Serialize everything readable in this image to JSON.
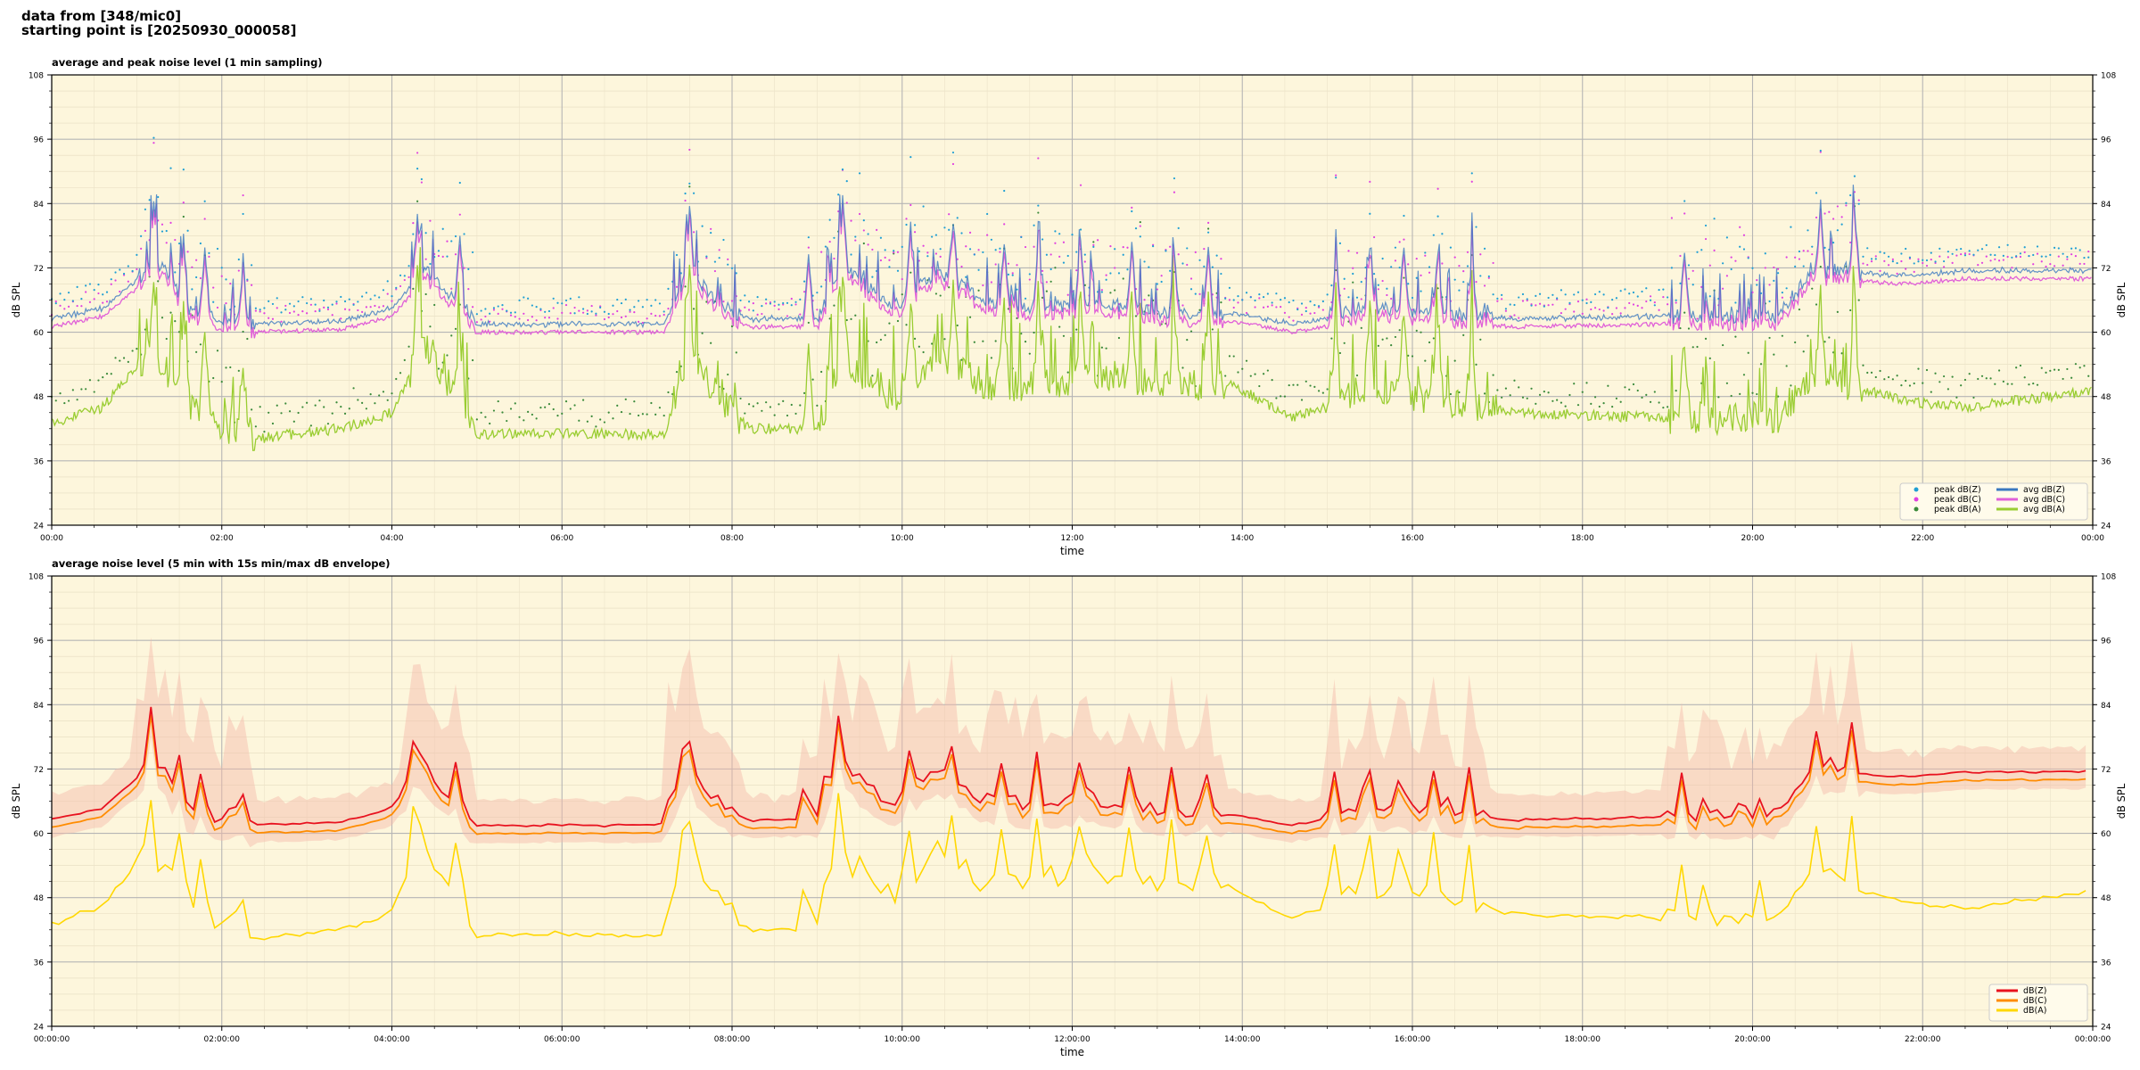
{
  "header": {
    "line1": "data from [348/mic0]",
    "line2": "starting point is [20250930_000058]"
  },
  "colors": {
    "background": "#fdf6dc",
    "peak_z": "#1f9fd4",
    "peak_c": "#e040e0",
    "peak_a": "#3a8a3a",
    "avg_z": "#3a78c0",
    "avg_c": "#e060d8",
    "avg_a": "#9acd32",
    "env_z": "#e8121f",
    "env_c": "#ff8c00",
    "env_a": "#ffd700",
    "envelope_fill": "#f4b8a8"
  },
  "chart_data": [
    {
      "type": "line",
      "title": "average and peak noise level (1 min sampling)",
      "xlabel": "time",
      "ylabel": "dB SPL",
      "ylim": [
        24,
        108
      ],
      "yticks": [
        24,
        36,
        48,
        60,
        72,
        84,
        96,
        108
      ],
      "xlim": [
        0,
        24
      ],
      "xtick_hours": [
        0,
        2,
        4,
        6,
        8,
        10,
        12,
        14,
        16,
        18,
        20,
        22,
        24
      ],
      "xtick_labels": [
        "00:00",
        "02:00",
        "04:00",
        "06:00",
        "08:00",
        "10:00",
        "12:00",
        "14:00",
        "16:00",
        "18:00",
        "20:00",
        "22:00",
        "00:00"
      ],
      "grid": true,
      "legend_position": "bottom-right",
      "legend": [
        {
          "label": "peak dB(Z)",
          "kind": "dot",
          "color": "peak_z"
        },
        {
          "label": "peak dB(C)",
          "kind": "dot",
          "color": "peak_c"
        },
        {
          "label": "peak dB(A)",
          "kind": "dot",
          "color": "peak_a"
        },
        {
          "label": "avg dB(Z)",
          "kind": "line",
          "color": "avg_z"
        },
        {
          "label": "avg dB(C)",
          "kind": "line",
          "color": "avg_c"
        },
        {
          "label": "avg dB(A)",
          "kind": "line",
          "color": "avg_a"
        }
      ],
      "baseline_profile": {
        "hours": [
          0,
          0.6,
          1.0,
          1.3,
          1.6,
          2.3,
          3.4,
          4.0,
          4.4,
          5.0,
          7.2,
          7.5,
          7.9,
          8.2,
          9.0,
          9.3,
          9.9,
          10.4,
          11.0,
          11.6,
          12.4,
          13.1,
          13.9,
          14.6,
          15.0,
          15.4,
          17.2,
          19.0,
          20.3,
          20.7,
          21.8,
          22.5,
          24.0
        ],
        "avg_c": [
          61,
          63,
          68,
          71,
          63,
          60,
          60.5,
          63,
          70,
          60,
          60,
          70,
          63,
          61,
          61,
          71,
          63,
          70,
          64,
          63,
          64,
          62,
          62,
          60,
          61,
          63,
          61,
          61.5,
          61.5,
          70,
          69,
          70,
          70
        ],
        "avg_a": [
          43,
          46,
          54,
          52,
          47,
          40,
          42,
          45,
          58,
          41,
          41,
          55,
          47,
          42,
          42,
          55,
          48,
          55,
          50,
          50,
          52,
          50,
          50,
          44,
          46,
          50,
          45,
          44,
          44,
          52,
          47,
          46,
          49
        ]
      },
      "events_hours": [
        1.2,
        1.55,
        1.8,
        2.25,
        4.3,
        4.8,
        7.5,
        8.9,
        9.3,
        10.1,
        10.6,
        11.2,
        11.6,
        12.1,
        12.7,
        13.2,
        13.6,
        15.1,
        15.5,
        15.9,
        16.3,
        16.7,
        19.2,
        20.8,
        21.2
      ],
      "z_offset_above_c": 1.5,
      "peak_offset_above_avg": 3
    },
    {
      "type": "line",
      "title": "average noise level (5 min with 15s min/max dB envelope)",
      "xlabel": "time",
      "ylabel": "dB SPL",
      "ylim": [
        24,
        108
      ],
      "yticks": [
        24,
        36,
        48,
        60,
        72,
        84,
        96,
        108
      ],
      "xlim": [
        0,
        24
      ],
      "xtick_hours": [
        0,
        2,
        4,
        6,
        8,
        10,
        12,
        14,
        16,
        18,
        20,
        22,
        24
      ],
      "xtick_labels": [
        "00:00:00",
        "02:00:00",
        "04:00:00",
        "06:00:00",
        "08:00:00",
        "10:00:00",
        "12:00:00",
        "14:00:00",
        "16:00:00",
        "18:00:00",
        "20:00:00",
        "22:00:00",
        "00:00:00"
      ],
      "grid": true,
      "legend_position": "bottom-right",
      "legend": [
        {
          "label": "dB(Z)",
          "kind": "line",
          "color": "env_z"
        },
        {
          "label": "dB(C)",
          "kind": "line",
          "color": "env_c"
        },
        {
          "label": "dB(A)",
          "kind": "line",
          "color": "env_a"
        }
      ],
      "series_source": "same profile as chart 1, 5 min average with 15s min/max envelope"
    }
  ]
}
